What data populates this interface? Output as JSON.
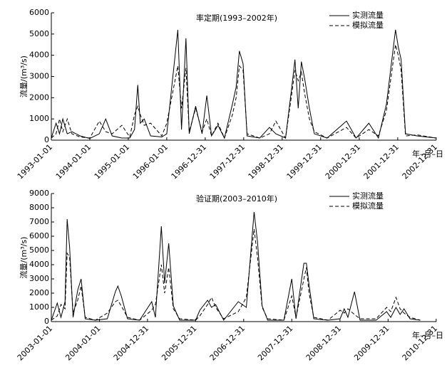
{
  "chart_data": [
    {
      "type": "line",
      "title": "率定期(1993–2002年)",
      "y_label": "流量/(m³/s)",
      "x_label": "年–月–日",
      "legend": "upper right",
      "xlim": [
        "1993-01-01",
        "2003-01-01"
      ],
      "xticks": [
        "1993-01-01",
        "1994-01-01",
        "1995-01-01",
        "1996-01-01",
        "1996-12-31",
        "1997-12-31",
        "1998-12-31",
        "1999-12-31",
        "2000-12-31",
        "2001-12-31",
        "2002-12-31"
      ],
      "ylim": [
        0,
        6000
      ],
      "yticks": [
        0,
        1000,
        2000,
        3000,
        4000,
        5000,
        6000
      ],
      "x": [
        "1993-01-01",
        "1993-02-15",
        "1993-03-20",
        "1993-04-20",
        "1993-06-01",
        "1993-07-15",
        "1993-10-01",
        "1994-01-01",
        "1994-04-01",
        "1994-06-01",
        "1994-08-01",
        "1994-11-01",
        "1995-01-15",
        "1995-03-01",
        "1995-04-01",
        "1995-04-25",
        "1995-06-01",
        "1995-08-01",
        "1995-11-15",
        "1996-01-01",
        "1996-04-15",
        "1996-05-20",
        "1996-07-01",
        "1996-08-01",
        "1996-10-01",
        "1996-12-01",
        "1997-01-15",
        "1997-03-01",
        "1997-05-01",
        "1997-07-01",
        "1997-09-15",
        "1997-10-20",
        "1997-11-20",
        "1997-12-25",
        "1998-02-01",
        "1998-06-01",
        "1998-09-01",
        "1998-11-01",
        "1999-02-01",
        "1999-04-01",
        "1999-05-01",
        "1999-06-01",
        "1999-07-01",
        "1999-08-01",
        "1999-09-15",
        "1999-11-01",
        "2000-03-01",
        "2000-09-01",
        "2000-12-01",
        "2001-04-01",
        "2001-07-01",
        "2001-09-15",
        "2001-12-10",
        "2002-01-05",
        "2002-02-01",
        "2002-03-15",
        "2002-07-01",
        "2002-12-31"
      ],
      "series": [
        {
          "name": "实测流量",
          "color": "#000000",
          "style": "solid",
          "values": [
            100,
            800,
            300,
            1000,
            300,
            400,
            200,
            80,
            300,
            1000,
            200,
            100,
            100,
            500,
            2600,
            800,
            1000,
            200,
            150,
            300,
            5200,
            500,
            4800,
            300,
            1600,
            300,
            2100,
            200,
            700,
            100,
            1700,
            2500,
            4200,
            3600,
            200,
            100,
            600,
            300,
            100,
            2500,
            3800,
            1500,
            3700,
            2900,
            1500,
            300,
            100,
            900,
            100,
            800,
            100,
            1700,
            5200,
            4400,
            3800,
            300,
            200,
            100
          ]
        },
        {
          "name": "模拟流量",
          "color": "#000000",
          "style": "dashed",
          "values": [
            100,
            300,
            1000,
            400,
            1000,
            300,
            150,
            100,
            900,
            400,
            300,
            700,
            150,
            1200,
            1600,
            1200,
            700,
            800,
            200,
            800,
            3500,
            1500,
            3400,
            400,
            1500,
            400,
            1000,
            200,
            800,
            100,
            1200,
            2000,
            3500,
            3300,
            300,
            100,
            300,
            900,
            100,
            2200,
            3300,
            2800,
            3200,
            2200,
            1000,
            400,
            100,
            600,
            100,
            500,
            200,
            1400,
            4500,
            4000,
            3300,
            200,
            250,
            100
          ]
        }
      ]
    },
    {
      "type": "line",
      "title": "验证期(2003–2010年)",
      "y_label": "流量/(m³/s)",
      "x_label": "年–月–日",
      "legend": "upper right",
      "xlim": [
        "2003-01-01",
        "2011-01-01"
      ],
      "xticks": [
        "2003-01-01",
        "2004-01-01",
        "2004-12-31",
        "2005-12-31",
        "2006-12-31",
        "2007-12-31",
        "2008-12-31",
        "2009-12-31",
        "2010-12-31"
      ],
      "ylim": [
        0,
        9000
      ],
      "yticks": [
        0,
        1000,
        2000,
        3000,
        4000,
        5000,
        6000,
        7000,
        8000,
        9000
      ],
      "x": [
        "2003-01-01",
        "2003-02-15",
        "2003-03-15",
        "2003-04-15",
        "2003-05-01",
        "2003-05-20",
        "2003-06-15",
        "2003-07-20",
        "2003-08-15",
        "2003-09-15",
        "2003-12-01",
        "2004-03-01",
        "2004-05-01",
        "2004-05-20",
        "2004-06-15",
        "2004-08-01",
        "2004-11-01",
        "2005-02-01",
        "2005-03-01",
        "2005-04-15",
        "2005-05-10",
        "2005-06-10",
        "2005-07-15",
        "2005-09-01",
        "2006-01-01",
        "2006-02-01",
        "2006-04-01",
        "2006-05-01",
        "2006-06-01",
        "2006-08-01",
        "2006-11-20",
        "2007-01-20",
        "2007-03-20",
        "2007-04-15",
        "2007-05-20",
        "2007-07-01",
        "2007-11-01",
        "2007-12-31",
        "2008-02-01",
        "2008-04-01",
        "2008-04-20",
        "2008-05-10",
        "2008-06-15",
        "2008-10-01",
        "2009-01-01",
        "2009-02-01",
        "2009-03-01",
        "2009-04-20",
        "2009-06-01",
        "2009-10-01",
        "2009-12-20",
        "2010-01-20",
        "2010-03-01",
        "2010-04-01",
        "2010-05-01",
        "2010-06-15",
        "2010-09-01"
      ],
      "series": [
        {
          "name": "实测流量",
          "color": "#000000",
          "style": "solid",
          "values": [
            100,
            1300,
            300,
            1400,
            7200,
            5200,
            300,
            2200,
            3000,
            200,
            100,
            200,
            2100,
            2500,
            1800,
            200,
            100,
            1400,
            300,
            6700,
            2700,
            5500,
            1100,
            100,
            100,
            800,
            1500,
            1000,
            1200,
            100,
            1400,
            1000,
            7700,
            5600,
            1100,
            100,
            100,
            3000,
            200,
            4100,
            4100,
            2600,
            200,
            100,
            200,
            900,
            300,
            2100,
            100,
            100,
            700,
            300,
            1000,
            500,
            900,
            200,
            100
          ]
        },
        {
          "name": "模拟流量",
          "color": "#000000",
          "style": "dashed",
          "values": [
            100,
            400,
            1200,
            900,
            4800,
            4500,
            600,
            1500,
            2500,
            300,
            100,
            600,
            1400,
            1500,
            1100,
            300,
            100,
            800,
            1200,
            4000,
            2000,
            3800,
            900,
            200,
            100,
            400,
            1200,
            1700,
            1000,
            200,
            700,
            1700,
            6500,
            4500,
            1000,
            200,
            100,
            1800,
            300,
            3000,
            3800,
            2000,
            300,
            100,
            800,
            600,
            900,
            500,
            200,
            200,
            1000,
            700,
            1700,
            900,
            600,
            300,
            100
          ]
        }
      ]
    }
  ]
}
